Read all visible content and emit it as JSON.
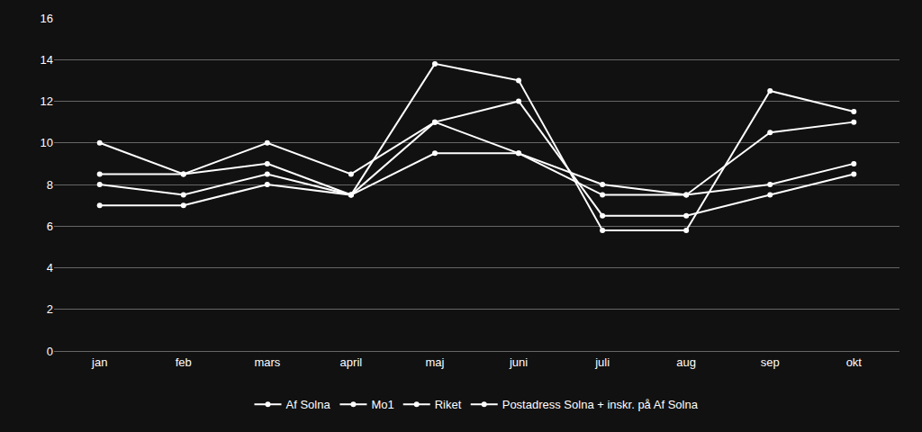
{
  "chart_data": {
    "type": "line",
    "categories": [
      "jan",
      "feb",
      "mars",
      "april",
      "maj",
      "juni",
      "juli",
      "aug",
      "sep",
      "okt"
    ],
    "series": [
      {
        "name": "Af Solna",
        "color": "#ffffff",
        "values": [
          10.0,
          8.5,
          10.0,
          8.5,
          11.0,
          9.5,
          8.0,
          7.5,
          10.5,
          11.0
        ]
      },
      {
        "name": "Mo1",
        "color": "#ffffff",
        "values": [
          8.5,
          8.5,
          9.0,
          7.5,
          9.5,
          9.5,
          7.5,
          7.5,
          8.0,
          9.0
        ]
      },
      {
        "name": "Riket",
        "color": "#ffffff",
        "values": [
          8.0,
          7.5,
          8.5,
          7.5,
          11.0,
          12.0,
          6.5,
          6.5,
          7.5,
          8.5
        ]
      },
      {
        "name": "Postadress Solna + inskr. på Af Solna",
        "color": "#ffffff",
        "values": [
          7.0,
          7.0,
          8.0,
          7.5,
          13.8,
          13.0,
          5.8,
          5.8,
          12.5,
          11.5
        ]
      }
    ],
    "ylim": [
      0,
      16
    ],
    "yticks": [
      0,
      2,
      4,
      6,
      8,
      10,
      12,
      14,
      16
    ],
    "grid": true,
    "legend": "bottom",
    "marker": "circle",
    "line_style": "solid"
  }
}
